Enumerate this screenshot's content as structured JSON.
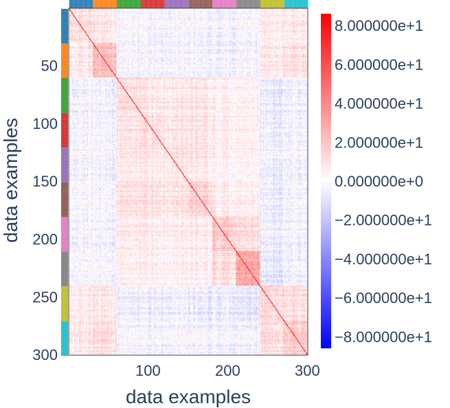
{
  "chart_data": {
    "type": "heatmap",
    "title": "",
    "xlabel": "data examples",
    "ylabel": "data examples",
    "n": 300,
    "xlim": [
      1,
      300
    ],
    "ylim": [
      300,
      1
    ],
    "x_ticks": [
      100,
      200,
      300
    ],
    "y_ticks": [
      50,
      100,
      150,
      200,
      250,
      300
    ],
    "colorscale": [
      "#0000ff",
      "#ffffff",
      "#ff0000"
    ],
    "zrange": [
      -86,
      86
    ],
    "colorbar_ticks": [
      {
        "value": 80,
        "label": "8.000000e+1"
      },
      {
        "value": 60,
        "label": "6.000000e+1"
      },
      {
        "value": 40,
        "label": "4.000000e+1"
      },
      {
        "value": 20,
        "label": "2.000000e+1"
      },
      {
        "value": 0,
        "label": "0.000000e+0"
      },
      {
        "value": -20,
        "label": "−2.000000e+1"
      },
      {
        "value": -40,
        "label": "−4.000000e+1"
      },
      {
        "value": -60,
        "label": "−6.000000e+1"
      },
      {
        "value": -80,
        "label": "−8.000000e+1"
      }
    ],
    "class_groups": [
      {
        "start": 1,
        "end": 30,
        "color": "#1f77b4"
      },
      {
        "start": 31,
        "end": 60,
        "color": "#ff7f0e"
      },
      {
        "start": 61,
        "end": 90,
        "color": "#2ca02c"
      },
      {
        "start": 91,
        "end": 120,
        "color": "#d62728"
      },
      {
        "start": 121,
        "end": 150,
        "color": "#9467bd"
      },
      {
        "start": 151,
        "end": 180,
        "color": "#8c564b"
      },
      {
        "start": 181,
        "end": 210,
        "color": "#e377c2"
      },
      {
        "start": 211,
        "end": 240,
        "color": "#7f7f7f"
      },
      {
        "start": 241,
        "end": 270,
        "color": "#bcbd22"
      },
      {
        "start": 271,
        "end": 300,
        "color": "#17becf"
      }
    ],
    "block_means": [
      [
        12,
        8,
        -4,
        -2,
        -3,
        -2,
        -3,
        -2,
        6,
        8
      ],
      [
        8,
        25,
        -5,
        -3,
        -4,
        -3,
        -4,
        -3,
        8,
        12
      ],
      [
        -4,
        -5,
        12,
        10,
        8,
        10,
        6,
        4,
        -8,
        -4
      ],
      [
        -2,
        -3,
        10,
        14,
        10,
        12,
        8,
        6,
        -6,
        -3
      ],
      [
        -3,
        -4,
        8,
        10,
        10,
        10,
        6,
        4,
        -6,
        -3
      ],
      [
        -2,
        -3,
        10,
        12,
        10,
        18,
        8,
        6,
        -8,
        -3
      ],
      [
        -3,
        -4,
        6,
        8,
        6,
        8,
        22,
        14,
        -6,
        -3
      ],
      [
        -2,
        -3,
        4,
        6,
        4,
        6,
        14,
        34,
        -10,
        -4
      ],
      [
        6,
        8,
        -8,
        -6,
        -6,
        -8,
        -6,
        -10,
        14,
        12
      ],
      [
        8,
        12,
        -4,
        -3,
        -3,
        -3,
        -3,
        -4,
        12,
        20
      ]
    ]
  }
}
